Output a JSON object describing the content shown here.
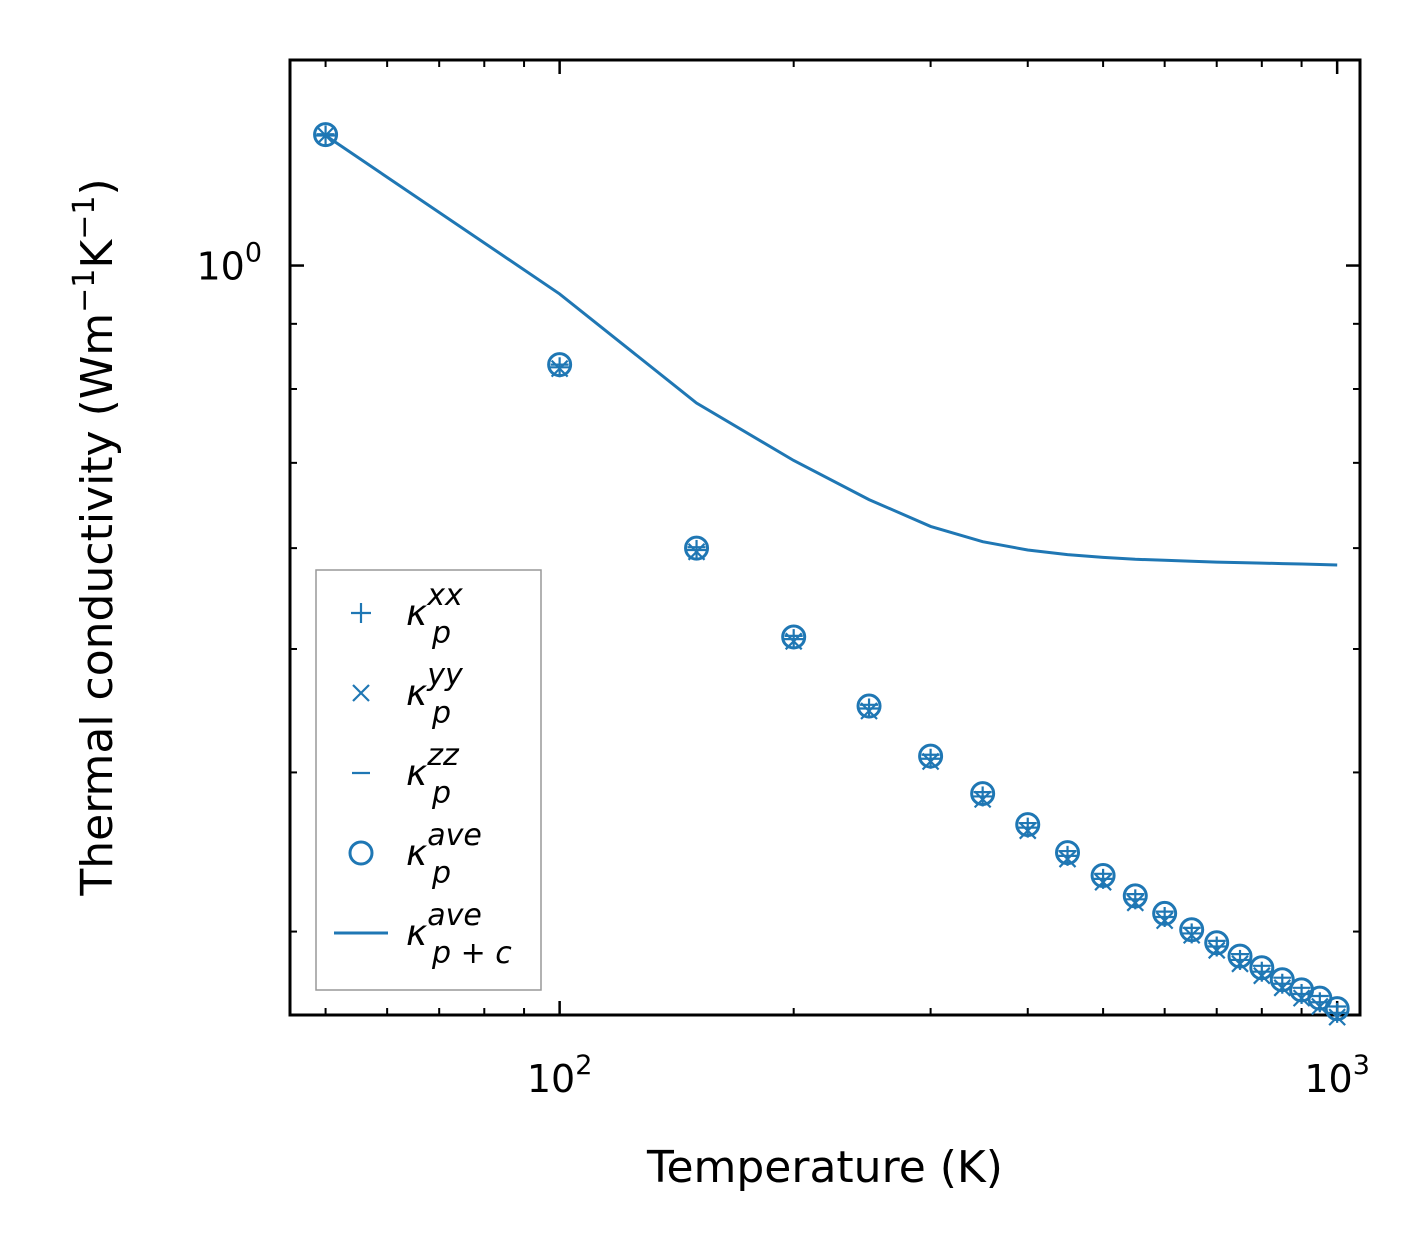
{
  "chart_data": {
    "type": "scatter",
    "title": "",
    "xlabel": "Temperature (K)",
    "ylabel": "Thermal conductivity (Wm",
    "ylabel_sup1": "−1",
    "ylabel_mid": "K",
    "ylabel_sup2": "−1",
    "ylabel_end": ")",
    "xscale": "log",
    "yscale": "log",
    "xlim": [
      45,
      1070
    ],
    "ylim": [
      0.258,
      1.45
    ],
    "x_ticks": [
      {
        "value": 100,
        "base": "10",
        "exp": "2"
      },
      {
        "value": 1000,
        "base": "10",
        "exp": "3"
      }
    ],
    "y_ticks": [
      {
        "value": 1,
        "base": "10",
        "exp": "0"
      }
    ],
    "grid": false,
    "legend_position": "lower-left",
    "color": "#1f77b4",
    "x": [
      50,
      100,
      150,
      200,
      250,
      300,
      350,
      400,
      450,
      500,
      550,
      600,
      650,
      700,
      750,
      800,
      850,
      900,
      950,
      1000
    ],
    "series": [
      {
        "name": "xx",
        "legend_base": "κ",
        "legend_sub": "p",
        "legend_sup": "xx",
        "marker": "plus",
        "values": [
          1.265,
          0.832,
          0.598,
          0.509,
          0.449,
          0.41,
          0.383,
          0.362,
          0.344,
          0.33,
          0.318,
          0.308,
          0.299,
          0.292,
          0.285,
          0.279,
          0.273,
          0.268,
          0.264,
          0.259
        ]
      },
      {
        "name": "yy",
        "legend_base": "κ",
        "legend_sub": "p",
        "legend_sup": "yy",
        "marker": "x",
        "values": [
          1.265,
          0.83,
          0.596,
          0.507,
          0.447,
          0.408,
          0.381,
          0.36,
          0.342,
          0.328,
          0.316,
          0.306,
          0.298,
          0.29,
          0.283,
          0.277,
          0.271,
          0.266,
          0.262,
          0.257
        ]
      },
      {
        "name": "zz",
        "legend_base": "κ",
        "legend_sub": "p",
        "legend_sup": "zz",
        "marker": "hline",
        "values": [
          1.268,
          0.836,
          0.601,
          0.512,
          0.452,
          0.413,
          0.386,
          0.365,
          0.347,
          0.333,
          0.321,
          0.311,
          0.302,
          0.295,
          0.288,
          0.282,
          0.276,
          0.271,
          0.267,
          0.262
        ]
      },
      {
        "name": "ave",
        "legend_base": "κ",
        "legend_sub": "p",
        "legend_sup": "ave",
        "marker": "circle",
        "values": [
          1.267,
          0.836,
          0.6,
          0.511,
          0.451,
          0.412,
          0.385,
          0.364,
          0.346,
          0.332,
          0.32,
          0.31,
          0.301,
          0.294,
          0.287,
          0.281,
          0.275,
          0.27,
          0.266,
          0.261
        ]
      },
      {
        "name": "p+c ave",
        "legend_base": "κ",
        "legend_sub": "p + c",
        "legend_sup": "ave",
        "marker": "line",
        "values": [
          1.265,
          0.95,
          0.78,
          0.703,
          0.655,
          0.624,
          0.607,
          0.598,
          0.593,
          0.59,
          0.588,
          0.587,
          0.586,
          0.585,
          0.5845,
          0.584,
          0.5835,
          0.583,
          0.5825,
          0.582
        ]
      }
    ]
  }
}
